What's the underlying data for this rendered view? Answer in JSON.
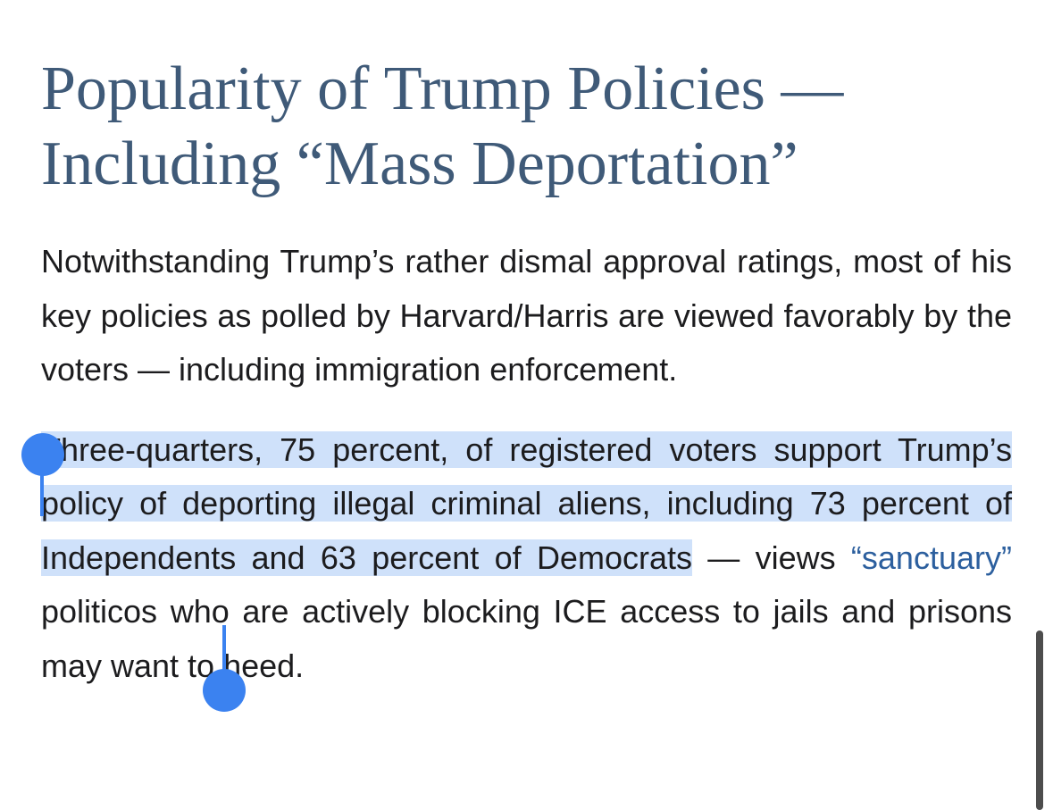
{
  "article": {
    "headline": "Popularity of Trump Policies — Including “Mass Deportation”",
    "paragraph1": "Notwithstanding Trump’s rather dismal approval ratings, most of his key policies as polled by Harvard/Harris are viewed favorably by the voters — including immigration enforcement.",
    "paragraph2": {
      "selected_text": "Three-quarters, 75 percent, of registered voters support Trump’s policy of deporting illegal criminal aliens, including 73 percent of Independents and 63 percent of Democrats",
      "text_after_selection": " — views ",
      "link_text": "“sanctuary”",
      "text_end": " politicos who are actively blocking ICE access to jails and prisons may want to heed."
    }
  },
  "selection": {
    "highlight_color": "#cfe1fa",
    "handle_color": "#3b82f0"
  },
  "colors": {
    "headline": "#3f5a78",
    "body_text": "#1c1c1e",
    "link": "#2c5f9e"
  }
}
